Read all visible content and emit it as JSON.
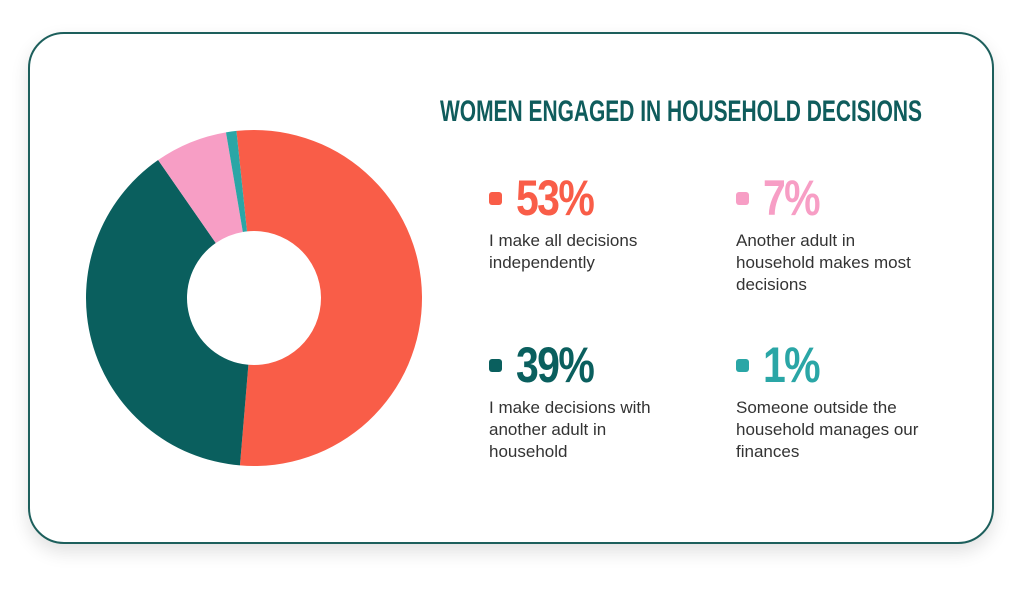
{
  "chart_data": {
    "type": "pie",
    "title": "WOMEN ENGAGED IN HOUSEHOLD DECISIONS",
    "categories": [
      "I make all decisions independently",
      "I make decisions with another adult in household",
      "Another adult in household makes most decisions",
      "Someone outside the household manages our finances"
    ],
    "values": [
      53,
      39,
      7,
      1
    ],
    "value_labels": [
      "53%",
      "39%",
      "7%",
      "1%"
    ],
    "colors": [
      "#f95d48",
      "#0a5f5e",
      "#f79ec5",
      "#2aa6a6"
    ]
  }
}
